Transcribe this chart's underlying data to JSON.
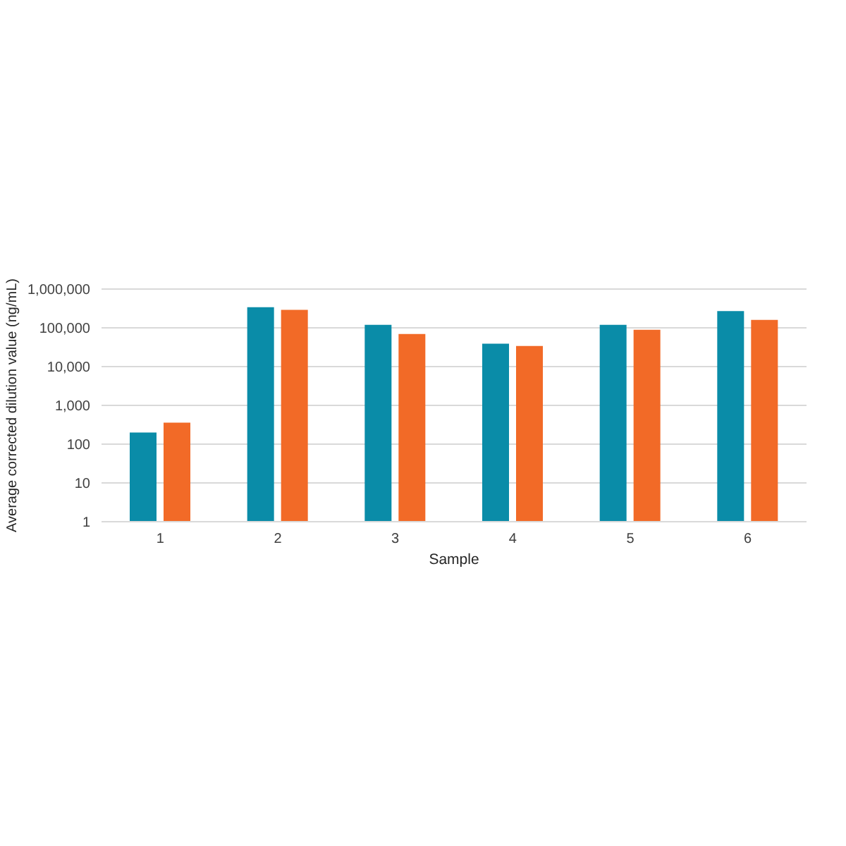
{
  "chart_data": {
    "type": "bar",
    "xlabel": "Sample",
    "ylabel": "Average corrected dilution value (ng/mL)",
    "categories": [
      "1",
      "2",
      "3",
      "4",
      "5",
      "6"
    ],
    "series": [
      {
        "color": "#0a8ca8",
        "values": [
          200,
          340000,
          120000,
          39000,
          120000,
          270000
        ]
      },
      {
        "color": "#f26a27",
        "values": [
          360,
          290000,
          69000,
          34000,
          89000,
          160000
        ]
      }
    ],
    "log": true,
    "ylim": [
      1,
      1000000
    ],
    "yticks": [
      1,
      10,
      100,
      {
        "value": 1000,
        "label": "1,000"
      },
      {
        "value": 10000,
        "label": "10,000"
      },
      {
        "value": 100000,
        "label": "100,000"
      },
      {
        "value": 1000000,
        "label": "1,000,000"
      }
    ],
    "grid": "y"
  }
}
